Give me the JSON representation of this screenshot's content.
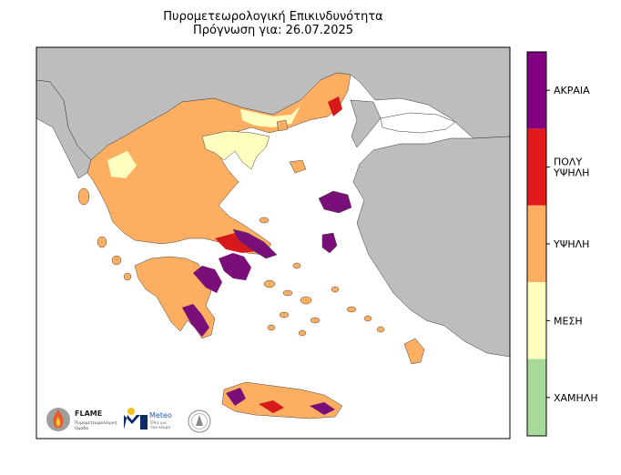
{
  "title": {
    "line1": "Πυρομετεωρολογική Επικινδυνότητα",
    "line2": "Πρόγνωση για: 26.07.2025"
  },
  "colors": {
    "land_other": "#bdbdbd",
    "sea": "#ffffff",
    "risk_low": "#a6d96a",
    "risk_medium": "#ffffbf",
    "risk_high": "#fdae61",
    "risk_very_high": "#d7191c",
    "risk_extreme": "#7b0f7a"
  },
  "legend": {
    "levels": [
      {
        "key": "extreme",
        "lines": [
          "ΑΚΡΑΙΑ"
        ],
        "color": "#80007f"
      },
      {
        "key": "very_high",
        "lines": [
          "ΠΟΛΥ",
          "ΥΨΗΛΗ"
        ],
        "color": "#e31a1c"
      },
      {
        "key": "high",
        "lines": [
          "ΥΨΗΛΗ"
        ],
        "color": "#fdae61"
      },
      {
        "key": "medium",
        "lines": [
          "ΜΕΣΗ"
        ],
        "color": "#fffebf"
      },
      {
        "key": "low",
        "lines": [
          "ΧΑΜΗΛΗ"
        ],
        "color": "#a6d99a"
      }
    ]
  },
  "logos": {
    "flame": {
      "name": "FLAME",
      "subtitle_line1": "Πυρομετεωρολογική",
      "subtitle_line2": "Ομάδα"
    },
    "meteo": {
      "name": "Meteo",
      "subtitle_line1": "Όλα για",
      "subtitle_line2": "τον καιρό"
    }
  }
}
